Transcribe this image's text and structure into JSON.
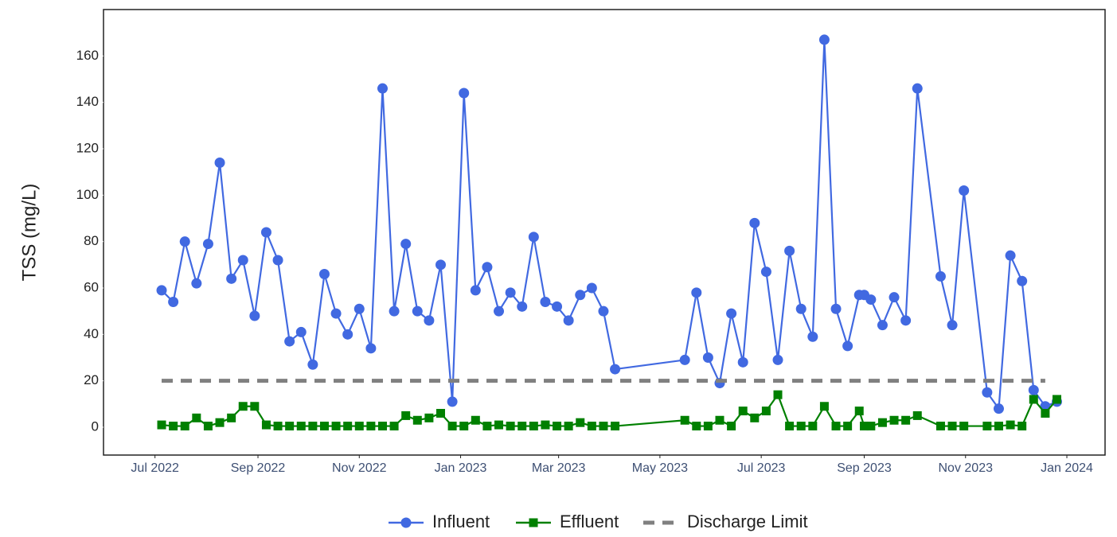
{
  "chart_data": {
    "type": "line",
    "ylabel": "TSS (mg/L)",
    "xlim": [
      "2022-05-31",
      "2024-01-24"
    ],
    "ylim": [
      -12,
      180
    ],
    "yticks": [
      0,
      20,
      40,
      60,
      80,
      100,
      120,
      140,
      160
    ],
    "xticks": [
      {
        "value": "2022-07-01",
        "label": "Jul 2022"
      },
      {
        "value": "2022-09-01",
        "label": "Sep 2022"
      },
      {
        "value": "2022-11-01",
        "label": "Nov 2022"
      },
      {
        "value": "2023-01-01",
        "label": "Jan 2023"
      },
      {
        "value": "2023-03-01",
        "label": "Mar 2023"
      },
      {
        "value": "2023-05-01",
        "label": "May 2023"
      },
      {
        "value": "2023-07-01",
        "label": "Jul 2023"
      },
      {
        "value": "2023-09-01",
        "label": "Sep 2023"
      },
      {
        "value": "2023-11-01",
        "label": "Nov 2023"
      },
      {
        "value": "2024-01-01",
        "label": "Jan 2024"
      }
    ],
    "grid": false,
    "legend": "bottom",
    "x": [
      "2022-07-05",
      "2022-07-12",
      "2022-07-19",
      "2022-07-26",
      "2022-08-02",
      "2022-08-09",
      "2022-08-16",
      "2022-08-23",
      "2022-08-30",
      "2022-09-06",
      "2022-09-13",
      "2022-09-20",
      "2022-09-27",
      "2022-10-04",
      "2022-10-11",
      "2022-10-18",
      "2022-10-25",
      "2022-11-01",
      "2022-11-08",
      "2022-11-15",
      "2022-11-22",
      "2022-11-29",
      "2022-12-06",
      "2022-12-13",
      "2022-12-20",
      "2022-12-27",
      "2023-01-03",
      "2023-01-10",
      "2023-01-17",
      "2023-01-24",
      "2023-01-31",
      "2023-02-07",
      "2023-02-14",
      "2023-02-21",
      "2023-02-28",
      "2023-03-07",
      "2023-03-14",
      "2023-03-21",
      "2023-03-28",
      "2023-04-04",
      "2023-05-16",
      "2023-05-23",
      "2023-05-30",
      "2023-06-06",
      "2023-06-13",
      "2023-06-20",
      "2023-06-27",
      "2023-07-04",
      "2023-07-11",
      "2023-07-18",
      "2023-07-25",
      "2023-08-01",
      "2023-08-08",
      "2023-08-15",
      "2023-08-22",
      "2023-08-29",
      "2023-09-01",
      "2023-09-05",
      "2023-09-12",
      "2023-09-19",
      "2023-09-26",
      "2023-10-03",
      "2023-10-17",
      "2023-10-24",
      "2023-10-31",
      "2023-11-14",
      "2023-11-21",
      "2023-11-28",
      "2023-12-05",
      "2023-12-12",
      "2023-12-19",
      "2023-12-26"
    ],
    "series": [
      {
        "name": "Influent",
        "color": "#4169e1",
        "marker": "circle",
        "values": [
          59,
          54,
          80,
          62,
          79,
          114,
          64,
          72,
          48,
          84,
          72,
          37,
          41,
          27,
          66,
          49,
          40,
          51,
          34,
          146,
          50,
          79,
          50,
          46,
          70,
          11,
          144,
          59,
          69,
          50,
          58,
          52,
          82,
          54,
          52,
          46,
          57,
          60,
          50,
          25,
          29,
          58,
          30,
          19,
          49,
          28,
          88,
          67,
          29,
          76,
          51,
          39,
          167,
          51,
          35,
          57,
          57,
          55,
          44,
          56,
          46,
          146,
          65,
          44,
          102,
          15,
          8,
          74,
          63,
          16,
          9,
          11
        ]
      },
      {
        "name": "Effluent",
        "color": "#008000",
        "marker": "square",
        "values": [
          1,
          0.5,
          0.5,
          4,
          0.5,
          2,
          4,
          9,
          9,
          1,
          0.5,
          0.5,
          0.5,
          0.5,
          0.5,
          0.5,
          0.5,
          0.5,
          0.5,
          0.5,
          0.5,
          5,
          3,
          4,
          6,
          0.5,
          0.5,
          3,
          0.5,
          1,
          0.5,
          0.5,
          0.5,
          1,
          0.5,
          0.5,
          2,
          0.5,
          0.5,
          0.5,
          3,
          0.5,
          0.5,
          3,
          0.5,
          7,
          4,
          7,
          14,
          0.5,
          0.5,
          0.5,
          9,
          0.5,
          0.5,
          7,
          0.5,
          0.5,
          2,
          3,
          3,
          5,
          0.5,
          0.5,
          0.5,
          0.5,
          0.5,
          1,
          0.5,
          12,
          6,
          12
        ]
      },
      {
        "name": "Discharge Limit",
        "color": "#808080",
        "dash": true,
        "x": [
          "2022-07-05",
          "2023-12-19"
        ],
        "values": [
          20,
          20
        ]
      }
    ]
  }
}
